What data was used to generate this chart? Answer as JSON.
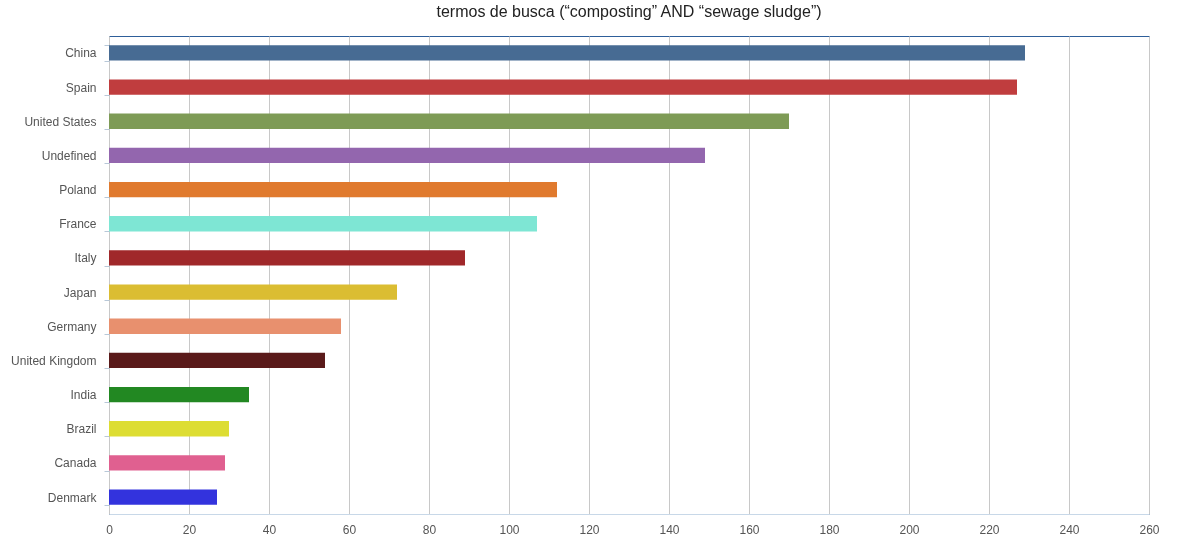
{
  "chart_data": {
    "type": "bar",
    "orientation": "horizontal",
    "title": "termos de busca (“composting” AND “sewage sludge”)",
    "categories": [
      "China",
      "Spain",
      "United States",
      "Undefined",
      "Poland",
      "France",
      "Italy",
      "Japan",
      "Germany",
      "United Kingdom",
      "India",
      "Brazil",
      "Canada",
      "Denmark"
    ],
    "values": [
      229,
      227,
      170,
      149,
      112,
      107,
      89,
      72,
      58,
      54,
      35,
      30,
      29,
      27
    ],
    "colors": [
      "#476b93",
      "#c03d3e",
      "#7e9b56",
      "#9366ae",
      "#e07a2e",
      "#7ee6d4",
      "#a0282a",
      "#dbbd32",
      "#e8906e",
      "#5a1a1a",
      "#228822",
      "#dddd33",
      "#e06090",
      "#3333dd"
    ],
    "xlim": [
      0,
      260
    ],
    "xticks": [
      0,
      20,
      40,
      60,
      80,
      100,
      120,
      140,
      160,
      180,
      200,
      220,
      240,
      260
    ],
    "grid": "x",
    "legend": false
  }
}
